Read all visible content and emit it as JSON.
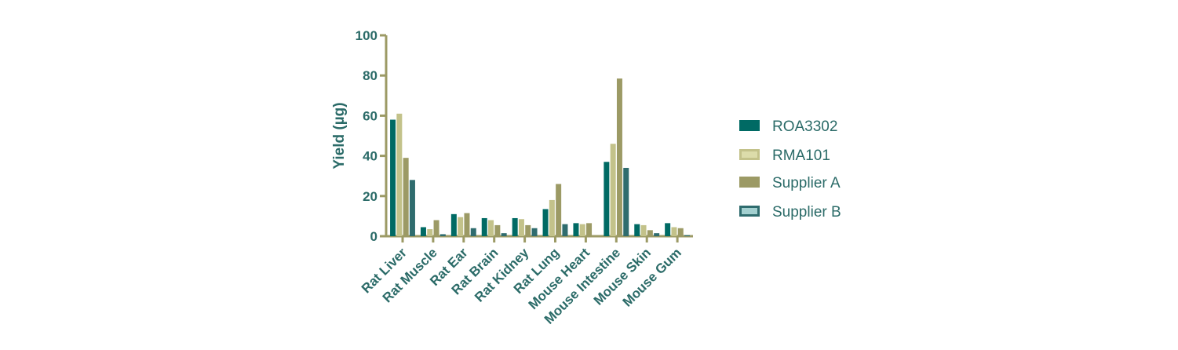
{
  "chart_data": {
    "type": "bar",
    "title": "",
    "xlabel": "",
    "ylabel": "Yield (µg)",
    "ylim": [
      0,
      100
    ],
    "yticks": [
      0,
      20,
      40,
      60,
      80,
      100
    ],
    "categories": [
      "Rat Liver",
      "Rat Muscle",
      "Rat Ear",
      "Rat Brain",
      "Rat Kidney",
      "Rat Lung",
      "Mouse Heart",
      "Mouse Intestine",
      "Mouse Skin",
      "Mouse Gum"
    ],
    "series": [
      {
        "name": "ROA3302",
        "values": [
          58,
          4.5,
          11,
          9,
          9,
          13.5,
          6.5,
          37,
          6,
          6.5
        ]
      },
      {
        "name": "RMA101",
        "values": [
          61,
          3.5,
          9.5,
          8,
          8.5,
          18,
          6,
          46,
          5.5,
          4.5
        ]
      },
      {
        "name": "Supplier A",
        "values": [
          39,
          8,
          11.5,
          5.5,
          5.5,
          26,
          6.5,
          78.5,
          3,
          4
        ]
      },
      {
        "name": "Supplier B",
        "values": [
          28,
          1,
          4,
          1.5,
          4,
          6,
          0,
          34,
          1.5,
          0.5
        ]
      }
    ],
    "legend_position": "right",
    "grid": false
  },
  "colors": {
    "axis": "#9c9a65",
    "text": "#2b6b68",
    "series": [
      "#006a64",
      "#c3c28a",
      "#9c9a65",
      "#2f6c6e"
    ],
    "series_inner": [
      "#006a64",
      "#dcdcaa",
      "#9c9a65",
      "#a3d0d0"
    ]
  }
}
